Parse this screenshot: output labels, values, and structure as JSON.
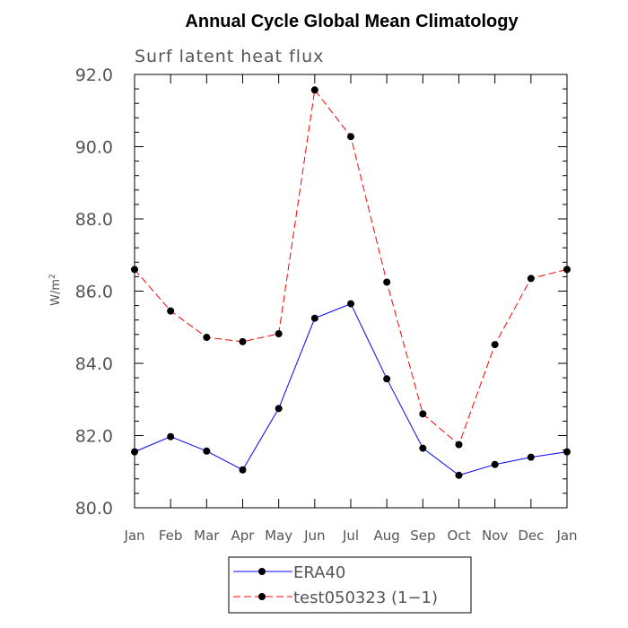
{
  "chart_data": {
    "type": "line",
    "title": "Annual Cycle Global Mean Climatology",
    "subtitle": "Surf latent heat flux",
    "ylabel": "W/m",
    "ylabel_superscript": "2",
    "xlabel": "",
    "ylim": [
      80.0,
      92.0
    ],
    "yticks": [
      "80.0",
      "82.0",
      "84.0",
      "86.0",
      "88.0",
      "90.0",
      "92.0"
    ],
    "categories": [
      "Jan",
      "Feb",
      "Mar",
      "Apr",
      "May",
      "Jun",
      "Jul",
      "Aug",
      "Sep",
      "Oct",
      "Nov",
      "Dec",
      "Jan"
    ],
    "series": [
      {
        "name": "ERA40",
        "color": "#0000ff",
        "dash": "solid",
        "values": [
          81.55,
          81.97,
          81.57,
          81.05,
          82.75,
          85.25,
          85.65,
          83.57,
          81.65,
          80.9,
          81.2,
          81.4,
          81.55
        ]
      },
      {
        "name": "test050323 (1−1)",
        "color": "#ff0000",
        "dash": "dashed",
        "values": [
          86.6,
          85.45,
          84.72,
          84.6,
          84.82,
          91.57,
          90.28,
          86.25,
          82.6,
          81.75,
          84.52,
          86.35,
          86.6
        ]
      }
    ],
    "legend_position": "bottom-center"
  }
}
